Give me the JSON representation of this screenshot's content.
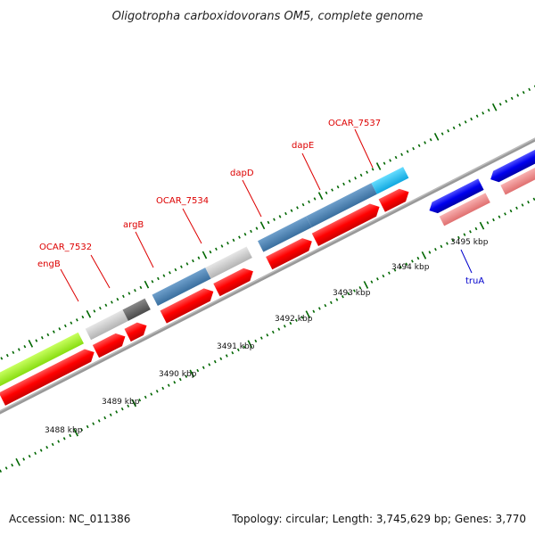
{
  "title": "Oligotropha carboxidovorans OM5, complete genome",
  "footer": {
    "accession": "Accession: NC_011386",
    "summary": "Topology: circular; Length: 3,745,629 bp; Genes: 3,770"
  },
  "scale": {
    "ticks": [
      {
        "label": "3488 kbp"
      },
      {
        "label": "3489 kbp"
      },
      {
        "label": "3490 kbp"
      },
      {
        "label": "3491 kbp"
      },
      {
        "label": "3492 kbp"
      },
      {
        "label": "3493 kbp"
      },
      {
        "label": "3494 kbp"
      },
      {
        "label": "3495 kbp"
      }
    ]
  },
  "gene_labels": [
    {
      "text": "engB",
      "color": "#dd0000"
    },
    {
      "text": "OCAR_7532",
      "color": "#dd0000"
    },
    {
      "text": "argB",
      "color": "#dd0000"
    },
    {
      "text": "OCAR_7534",
      "color": "#dd0000"
    },
    {
      "text": "dapD",
      "color": "#dd0000"
    },
    {
      "text": "dapE",
      "color": "#dd0000"
    },
    {
      "text": "OCAR_7537",
      "color": "#dd0000"
    },
    {
      "text": "truA",
      "color": "#0000cc"
    }
  ],
  "colors": {
    "forward_cds": "#ff0000",
    "reverse_cds": "#0000ee",
    "reverse_rna": "#f08080",
    "backbone": "#888888",
    "tick": "#006600",
    "cog_green": "#99ee22",
    "cog_lightgray": "#cccccc",
    "cog_darkgray": "#666666",
    "cog_steelblue": "#4682b4",
    "cog_cyan": "#22bbee"
  }
}
